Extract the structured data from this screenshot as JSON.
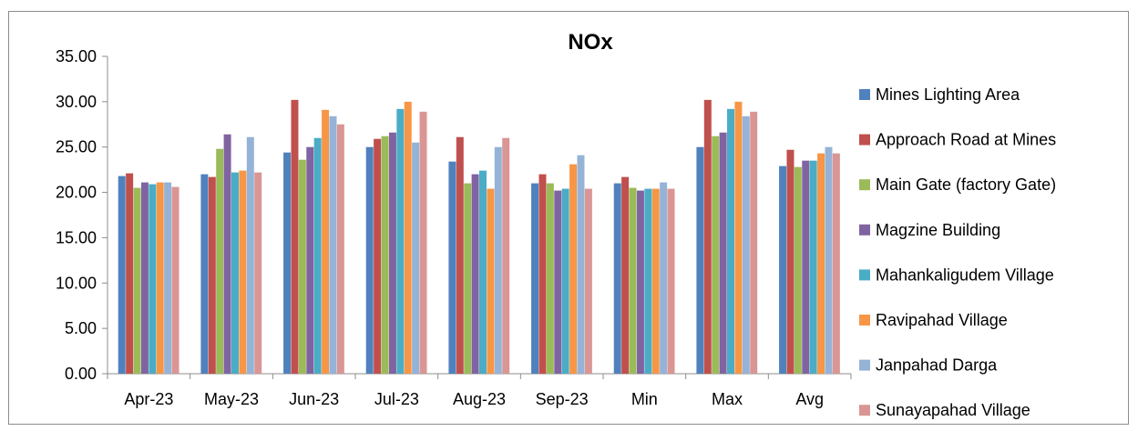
{
  "chart_data": {
    "type": "bar",
    "title": "NOx",
    "xlabel": "",
    "ylabel": "",
    "ylim": [
      0,
      35
    ],
    "yticks": [
      "0.00",
      "5.00",
      "10.00",
      "15.00",
      "20.00",
      "25.00",
      "30.00",
      "35.00"
    ],
    "categories": [
      "Apr-23",
      "May-23",
      "Jun-23",
      "Jul-23",
      "Aug-23",
      "Sep-23",
      "Min",
      "Max",
      "Avg"
    ],
    "grid": false,
    "legend_position": "right",
    "series": [
      {
        "name": "Mines Lighting Area",
        "color": "#4F81BD",
        "values": [
          21.8,
          22.0,
          24.4,
          25.0,
          23.4,
          21.0,
          21.0,
          25.0,
          22.9
        ]
      },
      {
        "name": "Approach Road at Mines",
        "color": "#C0504D",
        "values": [
          22.1,
          21.7,
          30.2,
          25.9,
          26.1,
          22.0,
          21.7,
          30.2,
          24.7
        ]
      },
      {
        "name": "Main Gate (factory Gate)",
        "color": "#9BBB59",
        "values": [
          20.5,
          24.8,
          23.6,
          26.2,
          21.0,
          21.0,
          20.5,
          26.2,
          22.8
        ]
      },
      {
        "name": "Magzine Building",
        "color": "#8064A2",
        "values": [
          21.1,
          26.4,
          25.0,
          26.6,
          22.0,
          20.2,
          20.2,
          26.6,
          23.5
        ]
      },
      {
        "name": "Mahankaligudem Village",
        "color": "#4BACC6",
        "values": [
          20.9,
          22.2,
          26.0,
          29.2,
          22.4,
          20.4,
          20.4,
          29.2,
          23.5
        ]
      },
      {
        "name": "Ravipahad Village",
        "color": "#F79646",
        "values": [
          21.1,
          22.4,
          29.1,
          30.0,
          20.4,
          23.1,
          20.4,
          30.0,
          24.3
        ]
      },
      {
        "name": "Janpahad Darga",
        "color": "#95B3D7",
        "values": [
          21.1,
          26.1,
          28.4,
          25.5,
          25.0,
          24.1,
          21.1,
          28.4,
          25.0
        ]
      },
      {
        "name": "Sunayapahad Village",
        "color": "#D99694",
        "values": [
          20.6,
          22.2,
          27.5,
          28.9,
          26.0,
          20.4,
          20.4,
          28.9,
          24.3
        ]
      }
    ]
  }
}
